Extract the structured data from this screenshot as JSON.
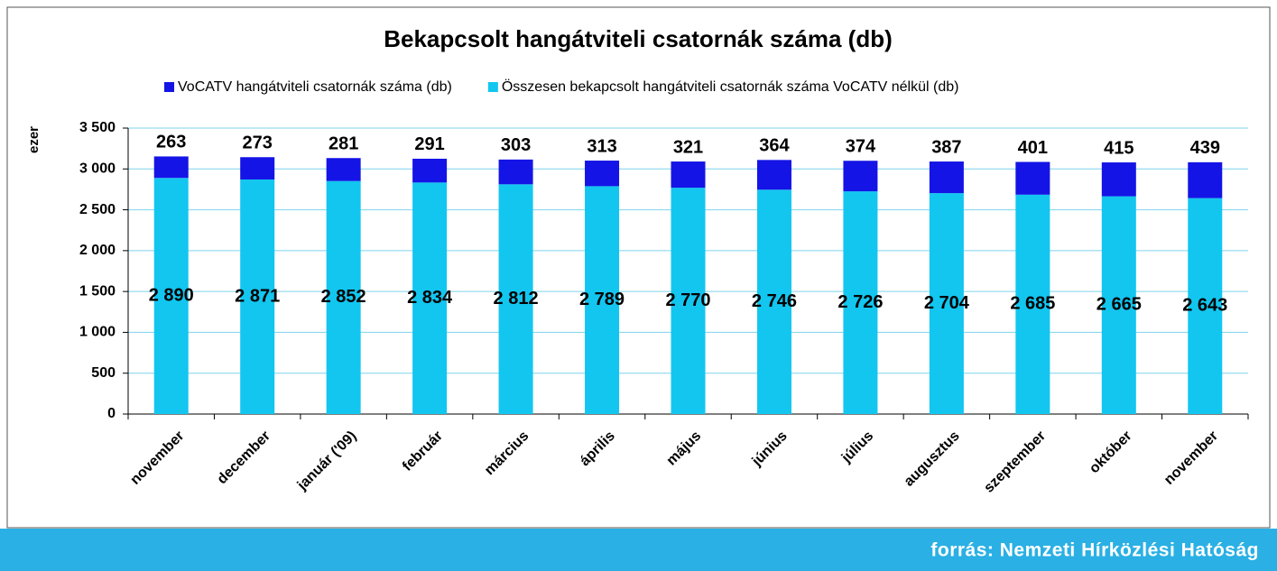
{
  "chart_data": {
    "type": "stacked_bar",
    "title": "Bekapcsolt hangátviteli csatornák száma (db)",
    "y_label": "ezer",
    "categories": [
      "november",
      "december",
      "január ('09)",
      "február",
      "március",
      "április",
      "május",
      "június",
      "július",
      "augusztus",
      "szeptember",
      "október",
      "november"
    ],
    "series": [
      {
        "name": "VoCATV hangátviteli csatornák száma (db)",
        "color": "#1414e6",
        "values": [
          263,
          273,
          281,
          291,
          303,
          313,
          321,
          364,
          374,
          387,
          401,
          415,
          439
        ]
      },
      {
        "name": "Összesen bekapcsolt hangátviteli csatornák száma VoCATV nélkül (db)",
        "color": "#12c6f0",
        "values": [
          2890,
          2871,
          2852,
          2834,
          2812,
          2789,
          2770,
          2746,
          2726,
          2704,
          2685,
          2665,
          2643
        ],
        "value_labels": [
          "2 890",
          "2 871",
          "2 852",
          "2 834",
          "2 812",
          "2 789",
          "2 770",
          "2 746",
          "2 726",
          "2 704",
          "2 685",
          "2 665",
          "2 643"
        ]
      }
    ],
    "ylim": [
      0,
      3500
    ],
    "yticks": [
      0,
      500,
      {
        "value": 1000,
        "label": "1 000"
      },
      {
        "value": 1500,
        "label": "1 500"
      },
      {
        "value": 2000,
        "label": "2 000"
      },
      {
        "value": 2500,
        "label": "2 500"
      },
      {
        "value": 3000,
        "label": "3 000"
      },
      {
        "value": 3500,
        "label": "3 500"
      }
    ],
    "grid": true,
    "legend": "top"
  },
  "footer_text": "forrás: Nemzeti Hírközlési Hatóság"
}
